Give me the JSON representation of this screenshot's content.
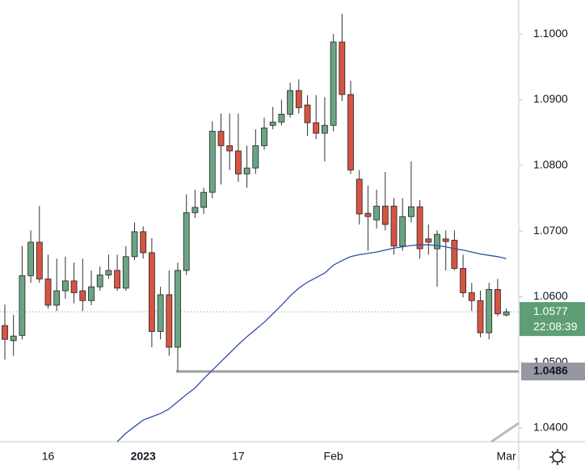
{
  "chart_data": {
    "type": "candlestick",
    "categories": [
      null,
      null,
      null,
      null,
      null,
      "16",
      null,
      null,
      null,
      null,
      null,
      null,
      null,
      null,
      null,
      null,
      "2023",
      null,
      null,
      null,
      null,
      null,
      null,
      null,
      null,
      null,
      null,
      "17",
      null,
      null,
      null,
      null,
      null,
      null,
      null,
      null,
      null,
      null,
      "Feb",
      null,
      null,
      null,
      null,
      null,
      null,
      null,
      null,
      null,
      null,
      null,
      null,
      null,
      null,
      null,
      null,
      null,
      null,
      null,
      "Mar"
    ],
    "open": [
      1.0556,
      1.0533,
      1.0541,
      1.0632,
      1.0683,
      1.0627,
      1.0587,
      1.0609,
      1.0624,
      1.0609,
      1.0594,
      1.0615,
      1.0633,
      1.064,
      1.0613,
      1.0661,
      1.0699,
      1.0667,
      1.0547,
      1.0603,
      1.0523,
      1.064,
      1.0728,
      1.0736,
      1.0759,
      1.0852,
      1.083,
      1.0822,
      1.0787,
      1.0796,
      1.083,
      1.0861,
      1.0866,
      1.0878,
      1.0914,
      1.0892,
      1.0865,
      1.0849,
      1.0861,
      1.0988,
      1.0908,
      1.0779,
      1.0727,
      1.0717,
      1.0738,
      1.0738,
      1.0677,
      1.0722,
      1.0737,
      1.0688,
      1.0673,
      1.0688,
      1.0686,
      1.0643,
      1.0606,
      1.0594,
      1.0545,
      1.0611,
      1.0572
    ],
    "high": [
      1.0588,
      1.0572,
      1.0677,
      1.0701,
      1.0738,
      1.0664,
      1.0658,
      1.0661,
      1.0652,
      1.0658,
      1.064,
      1.0646,
      1.0664,
      1.0664,
      1.0677,
      1.0713,
      1.0707,
      1.0689,
      1.0615,
      1.064,
      1.0652,
      1.0756,
      1.0763,
      1.0766,
      1.0867,
      1.0879,
      1.0879,
      1.0879,
      1.083,
      1.0855,
      1.0873,
      1.0889,
      1.09,
      1.0926,
      1.0931,
      1.0907,
      1.0907,
      1.0904,
      1.1,
      1.1031,
      1.0929,
      1.0793,
      1.0769,
      1.0763,
      1.079,
      1.075,
      1.075,
      1.0806,
      1.0747,
      1.071,
      1.0701,
      1.0701,
      1.0701,
      1.0664,
      1.0621,
      1.0609,
      1.0621,
      1.0627,
      1.0582
    ],
    "low": [
      1.0504,
      1.051,
      1.0535,
      1.0621,
      1.0621,
      1.0582,
      1.0578,
      1.0597,
      1.059,
      1.0578,
      1.0587,
      1.0609,
      1.0627,
      1.0609,
      1.0609,
      1.0656,
      1.0658,
      1.0523,
      1.0535,
      1.051,
      1.0486,
      1.0633,
      1.072,
      1.0726,
      1.075,
      1.0771,
      1.0793,
      1.0775,
      1.0766,
      1.0787,
      1.0824,
      1.0855,
      1.0861,
      1.0873,
      1.0879,
      1.0845,
      1.084,
      1.0806,
      1.0852,
      1.0898,
      1.0787,
      1.071,
      1.067,
      1.0704,
      1.0701,
      1.0664,
      1.067,
      1.0713,
      1.0658,
      1.0664,
      1.0615,
      1.064,
      1.064,
      1.0599,
      1.0578,
      1.0538,
      1.0535,
      1.057,
      1.057
    ],
    "close": [
      1.0535,
      1.054,
      1.0632,
      1.0683,
      1.0627,
      1.0587,
      1.0609,
      1.0624,
      1.0606,
      1.0594,
      1.0615,
      1.0633,
      1.064,
      1.0613,
      1.0661,
      1.0699,
      1.0667,
      1.0547,
      1.0603,
      1.0523,
      1.064,
      1.0728,
      1.0736,
      1.0759,
      1.0852,
      1.083,
      1.0822,
      1.0787,
      1.0796,
      1.083,
      1.0857,
      1.0866,
      1.0878,
      1.0914,
      1.0888,
      1.0865,
      1.0849,
      1.0861,
      1.0988,
      1.0908,
      1.0793,
      1.0726,
      1.0722,
      1.0738,
      1.071,
      1.0677,
      1.0722,
      1.0737,
      1.0673,
      1.0683,
      1.0695,
      1.0684,
      1.0643,
      1.0606,
      1.0594,
      1.0545,
      1.0611,
      1.0574,
      1.0577
    ],
    "up_color": "#6ba583",
    "down_color": "#d75442",
    "moving_average": {
      "color": "#2f4fa3",
      "values": [
        null,
        null,
        null,
        null,
        null,
        null,
        null,
        null,
        null,
        null,
        null,
        null,
        null,
        1.0379,
        1.0392,
        1.0402,
        1.0412,
        1.0417,
        1.0422,
        1.0429,
        1.044,
        1.0451,
        1.0461,
        1.0475,
        1.0488,
        1.0501,
        1.0514,
        1.0527,
        1.0539,
        1.055,
        1.0561,
        1.0574,
        1.0587,
        1.0601,
        1.0613,
        1.0622,
        1.0629,
        1.0636,
        1.0648,
        1.0655,
        1.0661,
        1.0664,
        1.0666,
        1.0668,
        1.0671,
        1.0674,
        1.0676,
        1.0678,
        1.0679,
        1.0679,
        1.0678,
        1.0676,
        1.0673,
        1.0671,
        1.0668,
        1.0665,
        1.0663,
        1.0661,
        1.0658
      ]
    },
    "horizontal_line": {
      "value": 1.0486,
      "color": "#9e9e9e"
    },
    "last_price": 1.0577,
    "last_price_color": "#5f9e74",
    "countdown": "22:08:39",
    "ylim": [
      1.0379,
      1.1052
    ],
    "yticks": [
      {
        "value": 1.04,
        "label": "1.0400"
      },
      {
        "value": 1.05,
        "label": "1.0500"
      },
      {
        "value": 1.06,
        "label": "1.0600"
      },
      {
        "value": 1.07,
        "label": "1.0700"
      },
      {
        "value": 1.08,
        "label": "1.0800"
      },
      {
        "value": 1.09,
        "label": "1.0900"
      },
      {
        "value": 1.1,
        "label": "1.1000"
      }
    ]
  }
}
